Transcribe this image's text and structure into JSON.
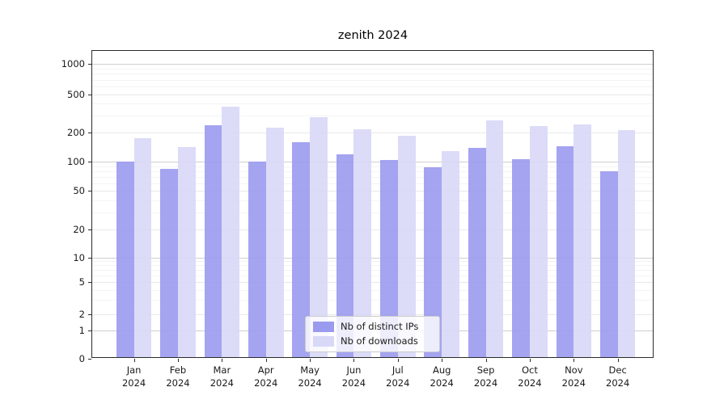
{
  "title": "zenith 2024",
  "chart_data": {
    "type": "bar",
    "categories": [
      "Jan",
      "Feb",
      "Mar",
      "Apr",
      "May",
      "Jun",
      "Jul",
      "Aug",
      "Sep",
      "Oct",
      "Nov",
      "Dec"
    ],
    "category_year": "2024",
    "series": [
      {
        "name": "Nb of distinct IPs",
        "color": "#9a9aee",
        "values": [
          100,
          85,
          240,
          100,
          160,
          120,
          105,
          87,
          140,
          107,
          145,
          80
        ]
      },
      {
        "name": "Nb of downloads",
        "color": "#d8d8f7",
        "values": [
          177,
          141,
          370,
          227,
          290,
          216,
          185,
          130,
          267,
          235,
          246,
          212
        ]
      }
    ],
    "title": "zenith 2024",
    "xlabel": "",
    "ylabel": "",
    "yscale": "symlog",
    "yticks": [
      0,
      1,
      2,
      5,
      10,
      20,
      50,
      100,
      200,
      500,
      1000
    ],
    "ylim": [
      0,
      1400
    ],
    "grid": true,
    "legend_position": "lower center"
  }
}
